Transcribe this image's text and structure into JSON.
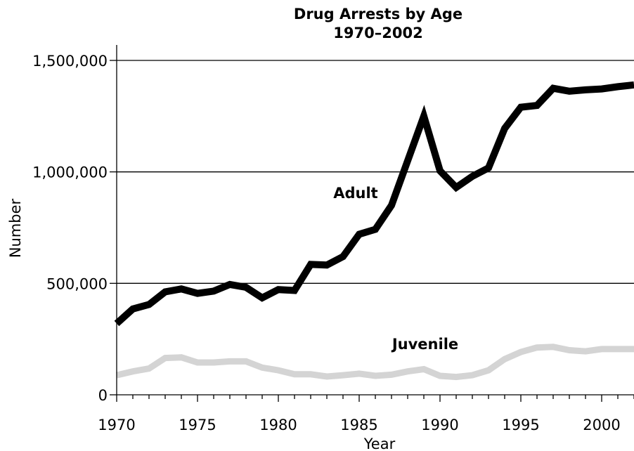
{
  "chart_data": {
    "type": "line",
    "title": "Drug Arrests by Age",
    "subtitle": "1970–2002",
    "xlabel": "Year",
    "ylabel": "Number",
    "xlim": [
      1970,
      2002
    ],
    "ylim": [
      0,
      1500000
    ],
    "grid": true,
    "x_ticks": [
      1970,
      1975,
      1980,
      1985,
      1990,
      1995,
      2000
    ],
    "x_tick_labels": [
      "1970",
      "1975",
      "1980",
      "1985",
      "1990",
      "1995",
      "2000"
    ],
    "y_ticks": [
      0,
      500000,
      1000000,
      1500000
    ],
    "y_tick_labels": [
      "0",
      "500,000",
      "1,000,000",
      "1,500,000"
    ],
    "x": [
      1970,
      1971,
      1972,
      1973,
      1974,
      1975,
      1976,
      1977,
      1978,
      1979,
      1980,
      1981,
      1982,
      1983,
      1984,
      1985,
      1986,
      1987,
      1988,
      1989,
      1990,
      1991,
      1992,
      1993,
      1994,
      1995,
      1996,
      1997,
      1998,
      1999,
      2000,
      2001,
      2002
    ],
    "series": [
      {
        "name": "Adult",
        "color": "#000000",
        "values": [
          320000,
          385000,
          405000,
          462000,
          475000,
          455000,
          465000,
          495000,
          482000,
          435000,
          472000,
          468000,
          585000,
          582000,
          620000,
          720000,
          742000,
          850000,
          1050000,
          1250000,
          1005000,
          930000,
          980000,
          1018000,
          1195000,
          1290000,
          1298000,
          1375000,
          1362000,
          1368000,
          1372000,
          1382000,
          1390000
        ]
      },
      {
        "name": "Juvenile",
        "color": "#d4d4d4",
        "values": [
          88000,
          105000,
          118000,
          165000,
          168000,
          145000,
          145000,
          150000,
          150000,
          122000,
          110000,
          92000,
          92000,
          82000,
          88000,
          95000,
          85000,
          90000,
          105000,
          115000,
          85000,
          80000,
          88000,
          110000,
          160000,
          192000,
          212000,
          215000,
          200000,
          195000,
          205000,
          205000,
          205000
        ]
      }
    ]
  }
}
